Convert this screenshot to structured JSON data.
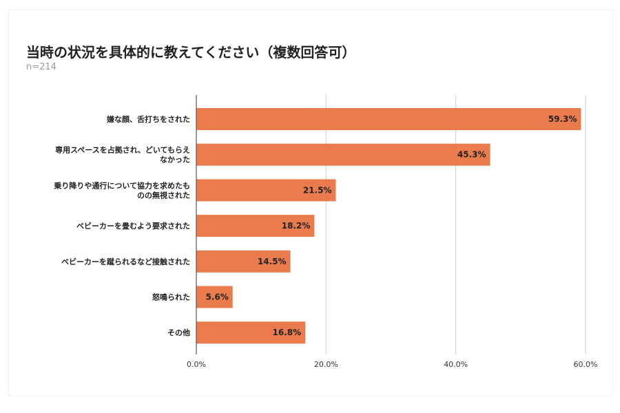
{
  "chart_data": {
    "type": "bar",
    "orientation": "horizontal",
    "title": "当時の状況を具体的に教えてください（複数回答可）",
    "subtitle": "n=214",
    "categories": [
      [
        "嫌な顔、舌打ちをされた"
      ],
      [
        "専用スペースを占拠され、どいてもらえ",
        "なかった"
      ],
      [
        "乗り降りや通行について協力を求めたも",
        "のの無視された"
      ],
      [
        "ベビーカーを畳むよう要求された"
      ],
      [
        "ベビーカーを蹴られるなど接触された"
      ],
      [
        "怒鳴られた"
      ],
      [
        "その他"
      ]
    ],
    "values": [
      59.3,
      45.3,
      21.5,
      18.2,
      14.5,
      5.6,
      16.8
    ],
    "value_labels": [
      "59.3%",
      "45.3%",
      "21.5%",
      "18.2%",
      "14.5%",
      "5.6%",
      "16.8%"
    ],
    "xlim": [
      0,
      60
    ],
    "xticks": [
      0,
      20,
      40,
      60
    ],
    "xtick_labels": [
      "0.0%",
      "20.0%",
      "40.0%",
      "60.0%"
    ],
    "grid": true,
    "bar_color": "#ea7b4d"
  }
}
